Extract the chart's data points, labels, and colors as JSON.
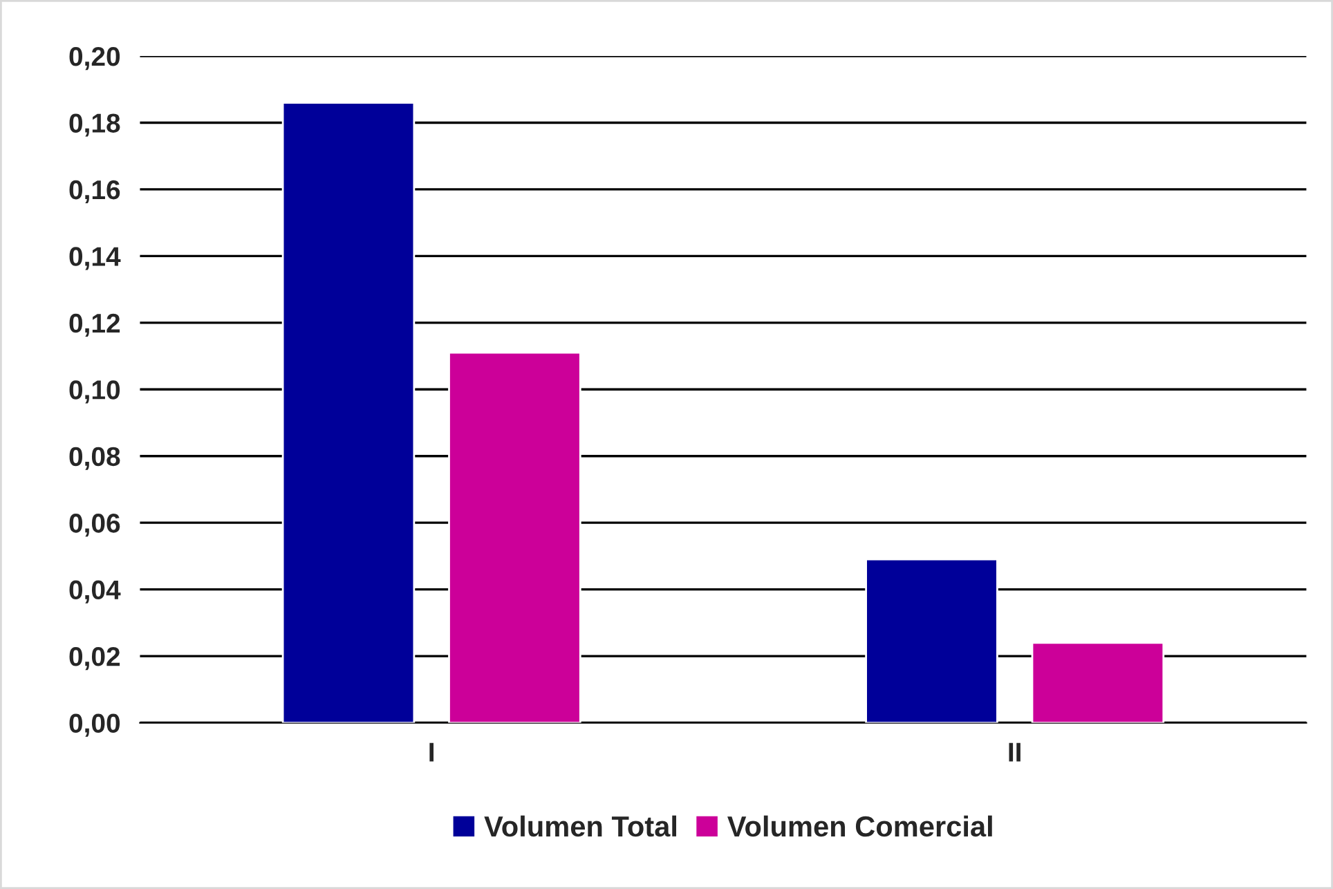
{
  "chart_data": {
    "type": "bar",
    "categories": [
      "I",
      "II"
    ],
    "series": [
      {
        "name": "Volumen Total",
        "color": "#000099",
        "values": [
          0.186,
          0.049
        ]
      },
      {
        "name": "Volumen Comercial",
        "color": "#cc0099",
        "values": [
          0.111,
          0.024
        ]
      }
    ],
    "ylim": [
      0,
      0.2
    ],
    "yticks": [
      {
        "value": 0,
        "label": "0,00"
      },
      {
        "value": 0.02,
        "label": "0,02"
      },
      {
        "value": 0.04,
        "label": "0,04"
      },
      {
        "value": 0.06,
        "label": "0,06"
      },
      {
        "value": 0.08,
        "label": "0,08"
      },
      {
        "value": 0.1,
        "label": "0,10"
      },
      {
        "value": 0.12,
        "label": "0,12"
      },
      {
        "value": 0.14,
        "label": "0,14"
      },
      {
        "value": 0.16,
        "label": "0,16"
      },
      {
        "value": 0.18,
        "label": "0,18"
      },
      {
        "value": 0.2,
        "label": "0,20"
      }
    ],
    "grid": "y",
    "legend": "bottom"
  }
}
